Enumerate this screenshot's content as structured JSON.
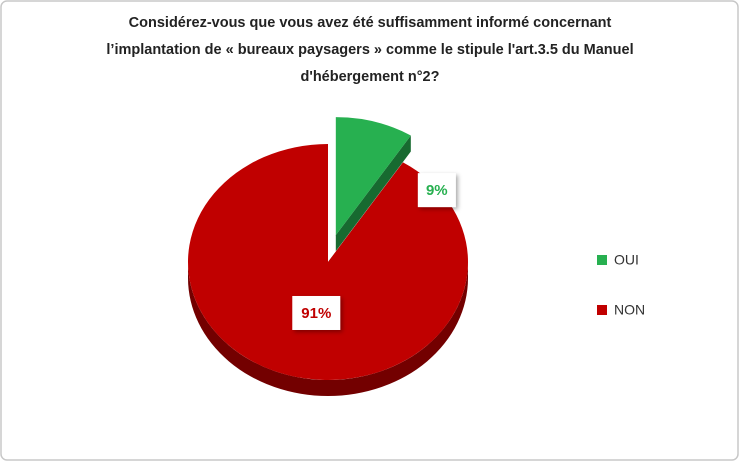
{
  "chart_data": {
    "type": "pie",
    "title": "Considérez-vous que vous avez été suffisamment informé concernant l’implantation de « bureaux paysagers » comme le stipule l'art.3.5 du Manuel d'hébergement n°2?",
    "categories": [
      "OUI",
      "NON"
    ],
    "values": [
      9,
      91
    ],
    "value_labels": [
      "9%",
      "91%"
    ],
    "colors": [
      "#27b050",
      "#c00000"
    ],
    "legend": "right"
  }
}
